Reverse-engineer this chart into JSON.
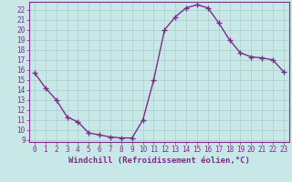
{
  "x": [
    0,
    1,
    2,
    3,
    4,
    5,
    6,
    7,
    8,
    9,
    10,
    11,
    12,
    13,
    14,
    15,
    16,
    17,
    18,
    19,
    20,
    21,
    22,
    23
  ],
  "y": [
    15.7,
    14.2,
    13.0,
    11.3,
    10.8,
    9.7,
    9.5,
    9.3,
    9.2,
    9.2,
    11.0,
    15.0,
    20.0,
    21.3,
    22.2,
    22.5,
    22.2,
    20.7,
    19.0,
    17.7,
    17.3,
    17.2,
    17.0,
    15.8
  ],
  "line_color": "#7b2d8b",
  "marker": "+",
  "marker_size": 4,
  "marker_color": "#7b2d8b",
  "bg_color": "#c8e8e8",
  "grid_color": "#aacccc",
  "xlabel": "Windchill (Refroidissement éolien,°C)",
  "xlim_min": -0.5,
  "xlim_max": 23.5,
  "ylim_min": 8.8,
  "ylim_max": 22.8,
  "xticks": [
    0,
    1,
    2,
    3,
    4,
    5,
    6,
    7,
    8,
    9,
    10,
    11,
    12,
    13,
    14,
    15,
    16,
    17,
    18,
    19,
    20,
    21,
    22,
    23
  ],
  "yticks": [
    9,
    10,
    11,
    12,
    13,
    14,
    15,
    16,
    17,
    18,
    19,
    20,
    21,
    22
  ],
  "tick_fontsize": 5.5,
  "xlabel_fontsize": 6.5,
  "line_width": 1.0,
  "spine_color": "#7b2d8b"
}
